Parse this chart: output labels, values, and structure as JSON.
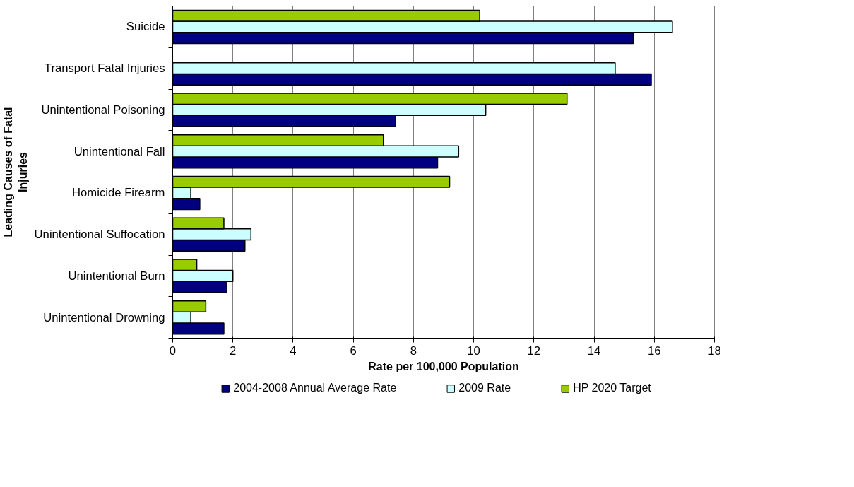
{
  "chart_data": {
    "type": "bar",
    "orientation": "horizontal",
    "xlabel": "Rate per 100,000 Population",
    "ylabel": "Leading Causes of Fatal Injuries",
    "categories": [
      "Suicide",
      "Transport Fatal Injuries",
      "Unintentional Poisoning",
      "Unintentional Fall",
      "Homicide Firearm",
      "Unintentional Suffocation",
      "Unintentional Burn",
      "Unintentional Drowning"
    ],
    "series": [
      {
        "name": "2004-2008 Annual Average Rate",
        "color": "#000080",
        "values": [
          15.3,
          15.9,
          7.4,
          8.8,
          0.9,
          2.4,
          1.8,
          1.7
        ]
      },
      {
        "name": "2009 Rate",
        "color": "#ccffff",
        "values": [
          16.6,
          14.7,
          10.4,
          9.5,
          0.6,
          2.6,
          2.0,
          0.6
        ]
      },
      {
        "name": "HP 2020 Target",
        "color": "#99cc00",
        "values": [
          10.2,
          null,
          13.1,
          7.0,
          9.2,
          1.7,
          0.8,
          1.1
        ]
      }
    ],
    "xlim": [
      0,
      18
    ],
    "xticks": [
      0,
      2,
      4,
      6,
      8,
      10,
      12,
      14,
      16,
      18
    ],
    "grid": "x",
    "legend": "bottom"
  }
}
